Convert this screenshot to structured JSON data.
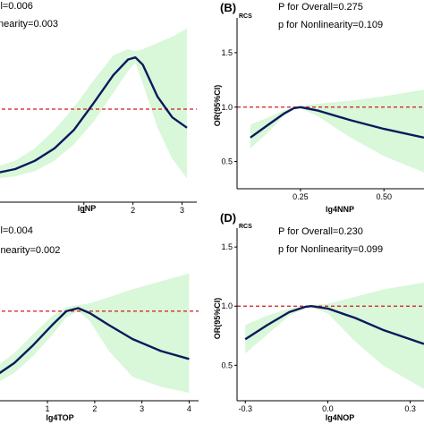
{
  "chart_data": [
    {
      "type": "line",
      "panel_label": "",
      "subscript": "",
      "p_overall": "ll=0.006",
      "p_nonlinearity": "nearity=0.003",
      "xlabel": "lgNP",
      "ylabel": "",
      "x_ticks": [
        "1",
        "2",
        "3"
      ],
      "x_tick_values": [
        1,
        2,
        3
      ],
      "y_ticks": [],
      "y_tick_values": [],
      "xlim": [
        -0.8,
        3.3
      ],
      "ylim": [
        0.1,
        1.9
      ],
      "reference_y": 1.0,
      "reference_line_color": "#d11a1a",
      "curve_color": "#0a1a5c",
      "band_color": "#d9f7d9",
      "series": [
        {
          "x": [
            -0.8,
            -0.4,
            0.0,
            0.4,
            0.8,
            1.2,
            1.6,
            1.9,
            2.05,
            2.2,
            2.5,
            2.8,
            3.1
          ],
          "y": [
            0.38,
            0.42,
            0.5,
            0.62,
            0.8,
            1.06,
            1.33,
            1.48,
            1.5,
            1.43,
            1.12,
            0.92,
            0.82
          ],
          "lower": [
            0.33,
            0.35,
            0.4,
            0.5,
            0.66,
            0.88,
            1.16,
            1.37,
            1.45,
            1.25,
            0.82,
            0.52,
            0.33
          ],
          "upper": [
            0.44,
            0.5,
            0.62,
            0.8,
            1.02,
            1.28,
            1.52,
            1.58,
            1.56,
            1.58,
            1.64,
            1.7,
            1.78
          ]
        }
      ]
    },
    {
      "type": "line",
      "panel_label": "(B)",
      "subscript": "RCS",
      "p_overall": "P for Overall=0.275",
      "p_nonlinearity": "p for Nonlinearity=0.109",
      "xlabel": "lg4NNP",
      "ylabel": "OR(95%CI)",
      "x_ticks": [
        "0.25",
        "0.50"
      ],
      "x_tick_values": [
        0.25,
        0.5
      ],
      "y_ticks": [
        "0.5",
        "1.0",
        "1.5"
      ],
      "y_tick_values": [
        0.5,
        1.0,
        1.5
      ],
      "xlim": [
        0.06,
        0.62
      ],
      "ylim": [
        0.25,
        1.82
      ],
      "reference_y": 1.0,
      "reference_line_color": "#d11a1a",
      "curve_color": "#0a1a5c",
      "band_color": "#d9f7d9",
      "series": [
        {
          "x": [
            0.1,
            0.15,
            0.2,
            0.23,
            0.25,
            0.3,
            0.4,
            0.5,
            0.62
          ],
          "y": [
            0.72,
            0.83,
            0.94,
            0.99,
            1.0,
            0.97,
            0.88,
            0.8,
            0.72
          ],
          "lower": [
            0.62,
            0.76,
            0.92,
            0.98,
            0.99,
            0.92,
            0.72,
            0.55,
            0.4
          ],
          "upper": [
            0.84,
            0.9,
            0.97,
            1.0,
            1.01,
            1.03,
            1.06,
            1.1,
            1.16
          ]
        }
      ]
    },
    {
      "type": "line",
      "panel_label": "",
      "subscript": "",
      "p_overall": "ll=0.004",
      "p_nonlinearity": "inearity=0.002",
      "xlabel": "lg4TOP",
      "ylabel": "",
      "x_ticks": [
        "1",
        "2",
        "3",
        "4"
      ],
      "x_tick_values": [
        1,
        2,
        3,
        4
      ],
      "y_ticks": [],
      "y_tick_values": [],
      "xlim": [
        -0.1,
        4.2
      ],
      "ylim": [
        0.1,
        1.7
      ],
      "reference_y": 1.0,
      "reference_line_color": "#d11a1a",
      "curve_color": "#0a1a5c",
      "band_color": "#d9f7d9",
      "series": [
        {
          "x": [
            -0.1,
            0.3,
            0.7,
            1.1,
            1.4,
            1.65,
            1.9,
            2.3,
            2.8,
            3.4,
            4.0
          ],
          "y": [
            0.35,
            0.48,
            0.66,
            0.86,
            1.0,
            1.03,
            0.98,
            0.86,
            0.72,
            0.6,
            0.52
          ],
          "lower": [
            0.27,
            0.38,
            0.55,
            0.76,
            0.94,
            1.0,
            0.9,
            0.6,
            0.34,
            0.24,
            0.18
          ],
          "upper": [
            0.44,
            0.58,
            0.77,
            0.95,
            1.04,
            1.06,
            1.08,
            1.14,
            1.22,
            1.3,
            1.38
          ]
        }
      ]
    },
    {
      "type": "line",
      "panel_label": "(D)",
      "subscript": "RCS",
      "p_overall": "P for Overall=0.230",
      "p_nonlinearity": "p for Nonlinearity=0.099",
      "xlabel": "lg4NOP",
      "ylabel": "OR(95%CI)",
      "x_ticks": [
        "-0.3",
        "0.0",
        "0.3"
      ],
      "x_tick_values": [
        -0.3,
        0.0,
        0.3
      ],
      "y_ticks": [
        "0.5",
        "1.0",
        "1.5"
      ],
      "y_tick_values": [
        0.5,
        1.0,
        1.5
      ],
      "xlim": [
        -0.33,
        0.35
      ],
      "ylim": [
        0.2,
        1.66
      ],
      "reference_y": 1.0,
      "reference_line_color": "#d11a1a",
      "curve_color": "#0a1a5c",
      "band_color": "#d9f7d9",
      "series": [
        {
          "x": [
            -0.3,
            -0.22,
            -0.14,
            -0.08,
            -0.06,
            0.0,
            0.1,
            0.2,
            0.35
          ],
          "y": [
            0.72,
            0.84,
            0.95,
            0.995,
            1.0,
            0.98,
            0.9,
            0.8,
            0.68
          ],
          "lower": [
            0.6,
            0.76,
            0.92,
            0.985,
            0.99,
            0.94,
            0.7,
            0.5,
            0.3
          ],
          "upper": [
            0.84,
            0.92,
            0.98,
            1.005,
            1.01,
            1.02,
            1.08,
            1.14,
            1.2
          ]
        }
      ]
    }
  ]
}
